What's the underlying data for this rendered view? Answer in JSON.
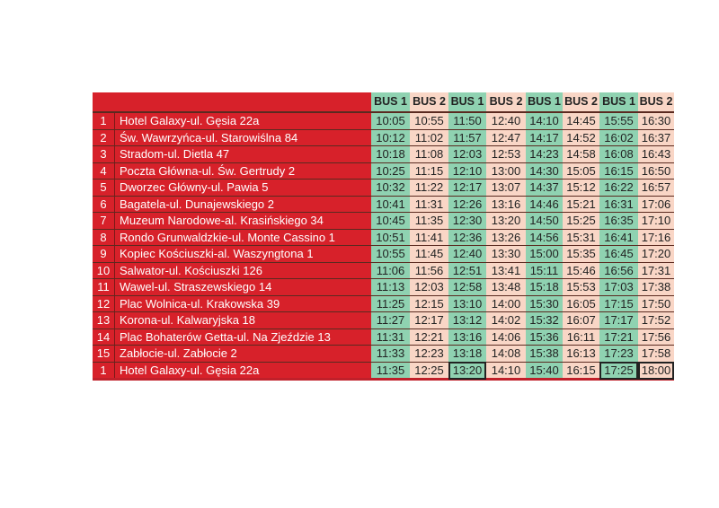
{
  "colors": {
    "red": "#d7212a",
    "bus1_green": "#8fd2b1",
    "bus2_pink": "#f9d6c6"
  },
  "headers": [
    "BUS 1",
    "BUS 2",
    "BUS 1",
    "BUS 2",
    "BUS 1",
    "BUS 2",
    "BUS 1",
    "BUS 2"
  ],
  "rows": [
    {
      "no": "1",
      "stop": "Hotel Galaxy-ul. Gęsia 22a",
      "times": [
        "10:05",
        "10:55",
        "11:50",
        "12:40",
        "14:10",
        "14:45",
        "15:55",
        "16:30"
      ]
    },
    {
      "no": "2",
      "stop": "Św. Wawrzyńca-ul. Starowiślna 84",
      "times": [
        "10:12",
        "11:02",
        "11:57",
        "12:47",
        "14:17",
        "14:52",
        "16:02",
        "16:37"
      ]
    },
    {
      "no": "3",
      "stop": "Stradom-ul. Dietla 47",
      "times": [
        "10:18",
        "11:08",
        "12:03",
        "12:53",
        "14:23",
        "14:58",
        "16:08",
        "16:43"
      ]
    },
    {
      "no": "4",
      "stop": "Poczta Główna-ul. Św. Gertrudy 2",
      "times": [
        "10:25",
        "11:15",
        "12:10",
        "13:00",
        "14:30",
        "15:05",
        "16:15",
        "16:50"
      ]
    },
    {
      "no": "5",
      "stop": "Dworzec Główny-ul. Pawia 5",
      "times": [
        "10:32",
        "11:22",
        "12:17",
        "13:07",
        "14:37",
        "15:12",
        "16:22",
        "16:57"
      ]
    },
    {
      "no": "6",
      "stop": "Bagatela-ul. Dunajewskiego 2",
      "times": [
        "10:41",
        "11:31",
        "12:26",
        "13:16",
        "14:46",
        "15:21",
        "16:31",
        "17:06"
      ]
    },
    {
      "no": "7",
      "stop": "Muzeum Narodowe-al. Krasińskiego 34",
      "times": [
        "10:45",
        "11:35",
        "12:30",
        "13:20",
        "14:50",
        "15:25",
        "16:35",
        "17:10"
      ]
    },
    {
      "no": "8",
      "stop": "Rondo Grunwaldzkie-ul. Monte Cassino 1",
      "times": [
        "10:51",
        "11:41",
        "12:36",
        "13:26",
        "14:56",
        "15:31",
        "16:41",
        "17:16"
      ]
    },
    {
      "no": "9",
      "stop": "Kopiec Kościuszki-al. Waszyngtona 1",
      "times": [
        "10:55",
        "11:45",
        "12:40",
        "13:30",
        "15:00",
        "15:35",
        "16:45",
        "17:20"
      ]
    },
    {
      "no": "10",
      "stop": "Salwator-ul. Kościuszki 126",
      "times": [
        "11:06",
        "11:56",
        "12:51",
        "13:41",
        "15:11",
        "15:46",
        "16:56",
        "17:31"
      ]
    },
    {
      "no": "11",
      "stop": "Wawel-ul. Straszewskiego 14",
      "times": [
        "11:13",
        "12:03",
        "12:58",
        "13:48",
        "15:18",
        "15:53",
        "17:03",
        "17:38"
      ]
    },
    {
      "no": "12",
      "stop": "Plac Wolnica-ul. Krakowska 39",
      "times": [
        "11:25",
        "12:15",
        "13:10",
        "14:00",
        "15:30",
        "16:05",
        "17:15",
        "17:50"
      ]
    },
    {
      "no": "13",
      "stop": "Korona-ul. Kalwaryjska 18",
      "times": [
        "11:27",
        "12:17",
        "13:12",
        "14:02",
        "15:32",
        "16:07",
        "17:17",
        "17:52"
      ]
    },
    {
      "no": "14",
      "stop": "Plac Bohaterów Getta-ul. Na Zjeździe 13",
      "times": [
        "11:31",
        "12:21",
        "13:16",
        "14:06",
        "15:36",
        "16:11",
        "17:21",
        "17:56"
      ]
    },
    {
      "no": "15",
      "stop": "Zabłocie-ul. Zabłocie 2",
      "times": [
        "11:33",
        "12:23",
        "13:18",
        "14:08",
        "15:38",
        "16:13",
        "17:23",
        "17:58"
      ]
    },
    {
      "no": "1",
      "stop": "Hotel Galaxy-ul. Gęsia 22a",
      "times": [
        "11:35",
        "12:25",
        "13:20",
        "14:10",
        "15:40",
        "16:15",
        "17:25",
        "18:00"
      ],
      "boxed": [
        2,
        6,
        7
      ]
    }
  ]
}
